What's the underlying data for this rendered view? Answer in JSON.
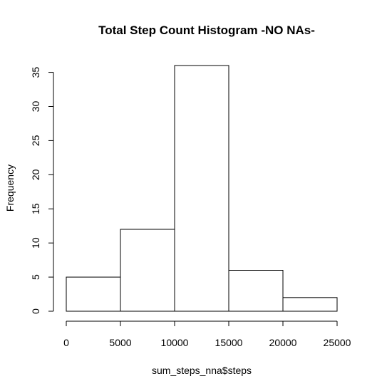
{
  "chart_data": {
    "type": "bar",
    "title": "Total Step Count Histogram -NO NAs-",
    "xlabel": "sum_steps_nna$steps",
    "ylabel": "Frequency",
    "bins": [
      {
        "from": 0,
        "to": 5000,
        "count": 5
      },
      {
        "from": 5000,
        "to": 10000,
        "count": 12
      },
      {
        "from": 10000,
        "to": 15000,
        "count": 36
      },
      {
        "from": 15000,
        "to": 20000,
        "count": 6
      },
      {
        "from": 20000,
        "to": 25000,
        "count": 2
      }
    ],
    "xticks": [
      0,
      5000,
      10000,
      15000,
      20000,
      25000
    ],
    "yticks": [
      0,
      5,
      10,
      15,
      20,
      25,
      30,
      35
    ],
    "xlim": [
      0,
      25000
    ],
    "ylim": [
      0,
      36
    ],
    "grid": false,
    "legend": "none",
    "colors": {
      "bar_fill": "#ffffff",
      "bar_stroke": "#000000"
    }
  }
}
